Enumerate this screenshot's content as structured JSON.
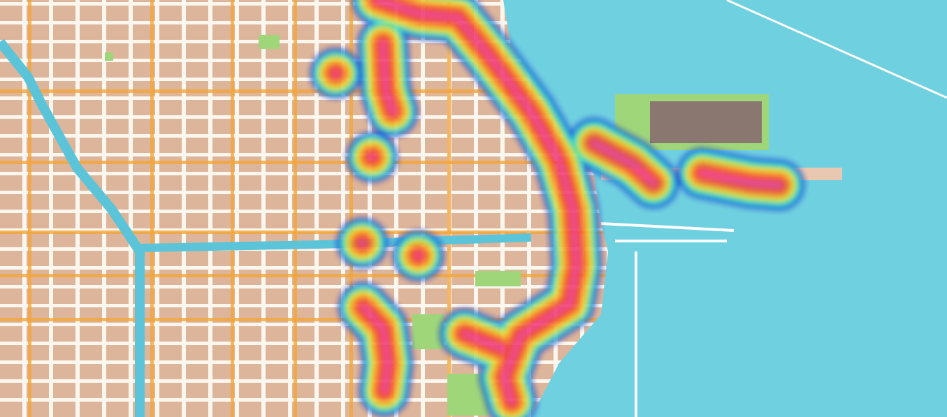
{
  "map": {
    "style": "watercolor",
    "colors": {
      "land": "#ddb59a",
      "water": "#6fd0e0",
      "major_road": "#f2a53a",
      "park": "#9fd67a",
      "street": "#fbf7ef"
    }
  },
  "heatmap": {
    "gradient": [
      "#1a1ad0",
      "#1fd6e8",
      "#4fe04a",
      "#f4f02a",
      "#f7902a",
      "#f2402a",
      "#ef3fd8"
    ]
  }
}
